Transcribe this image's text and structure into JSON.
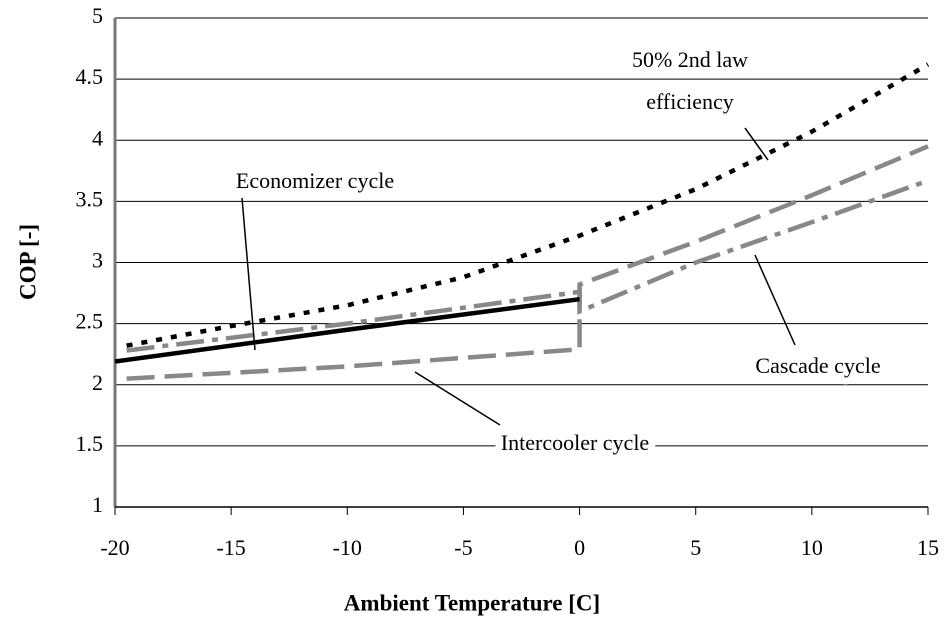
{
  "chart_data": {
    "type": "line",
    "xlabel": "Ambient Temperature [C]",
    "ylabel": "COP [-]",
    "xlim": [
      -20,
      15
    ],
    "xticks": [
      -20,
      -15,
      -10,
      -5,
      0,
      5,
      10,
      15
    ],
    "ylim": [
      1,
      5
    ],
    "yticks": [
      1,
      1.5,
      2,
      2.5,
      3,
      3.5,
      4,
      4.5,
      5
    ],
    "grid": true,
    "series": [
      {
        "color": "#000000",
        "dash": "dotted",
        "x": [
          -19.5,
          -15,
          -10,
          -5,
          0,
          5,
          10,
          15
        ],
        "values": [
          2.32,
          2.48,
          2.65,
          2.88,
          3.22,
          3.6,
          4.07,
          4.62
        ]
      },
      {
        "color": "#888888",
        "dash": "dashdot",
        "x": [
          -19.5,
          -10,
          0,
          0,
          5,
          10,
          15
        ],
        "values": [
          2.28,
          2.5,
          2.76,
          2.6,
          3.0,
          3.33,
          3.67
        ]
      },
      {
        "color": "#888888",
        "dash": "dashed",
        "x": [
          -19.5,
          -10,
          0,
          0,
          5,
          10,
          15
        ],
        "values": [
          2.05,
          2.15,
          2.29,
          2.82,
          3.17,
          3.55,
          3.95
        ]
      },
      {
        "color": "#000000",
        "dash": "solid",
        "x": [
          -20,
          -10,
          0
        ],
        "values": [
          2.19,
          2.45,
          2.7
        ]
      }
    ],
    "annotations": [
      "50% 2nd law",
      "efficiency",
      "Economizer cycle",
      "Cascade cycle",
      "Intercooler cycle"
    ]
  }
}
